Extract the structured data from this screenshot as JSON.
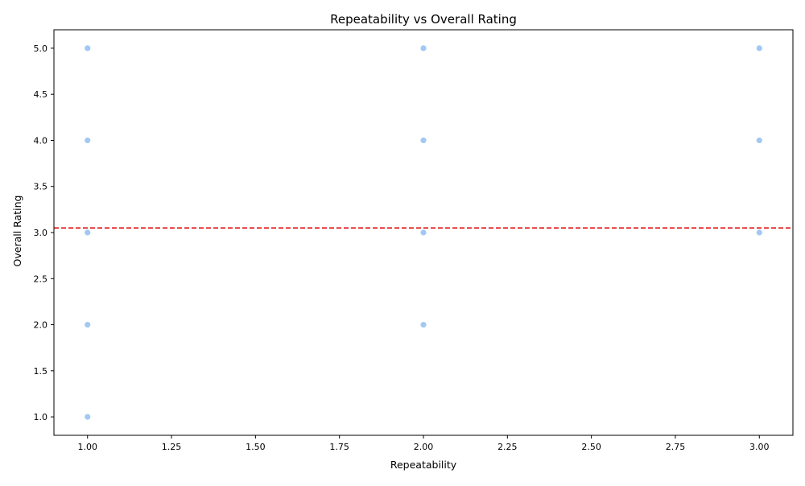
{
  "chart_data": {
    "type": "scatter",
    "title": "Repeatability vs Overall Rating",
    "xlabel": "Repeatability",
    "ylabel": "Overall Rating",
    "xlim": [
      0.9,
      3.1
    ],
    "ylim": [
      0.8,
      5.2
    ],
    "x_ticks": [
      "1.00",
      "1.25",
      "1.50",
      "1.75",
      "2.00",
      "2.25",
      "2.50",
      "2.75",
      "3.00"
    ],
    "y_ticks": [
      "1.0",
      "1.5",
      "2.0",
      "2.5",
      "3.0",
      "3.5",
      "4.0",
      "4.5",
      "5.0"
    ],
    "grid": false,
    "points": [
      {
        "x": 1,
        "y": 5
      },
      {
        "x": 1,
        "y": 4
      },
      {
        "x": 1,
        "y": 3
      },
      {
        "x": 1,
        "y": 2
      },
      {
        "x": 1,
        "y": 1
      },
      {
        "x": 2,
        "y": 5
      },
      {
        "x": 2,
        "y": 4
      },
      {
        "x": 2,
        "y": 3
      },
      {
        "x": 2,
        "y": 2
      },
      {
        "x": 3,
        "y": 5
      },
      {
        "x": 3,
        "y": 4
      },
      {
        "x": 3,
        "y": 3
      }
    ],
    "reference_line": {
      "y": 3.05,
      "style": "dashed",
      "color": "#e00000"
    },
    "marker_color": "#a1c9f4",
    "marker_edge_color": "#ffffff"
  }
}
